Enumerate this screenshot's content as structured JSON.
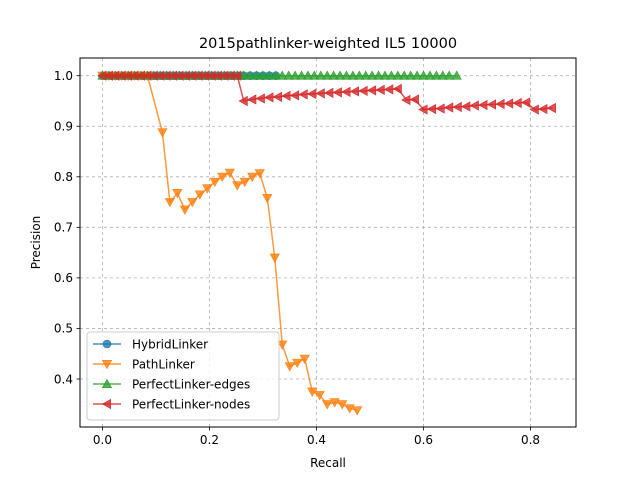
{
  "chart_data": {
    "type": "line",
    "title": "2015pathlinker-weighted IL5 10000",
    "xlabel": "Recall",
    "ylabel": "Precision",
    "xlim": [
      -0.042,
      0.885
    ],
    "ylim": [
      0.305,
      1.035
    ],
    "xticks": [
      0.0,
      0.2,
      0.4,
      0.6,
      0.8
    ],
    "xtick_labels": [
      "0.0",
      "0.2",
      "0.4",
      "0.6",
      "0.8"
    ],
    "yticks": [
      0.4,
      0.5,
      0.6,
      0.7,
      0.8,
      0.9,
      1.0
    ],
    "ytick_labels": [
      "0.4",
      "0.5",
      "0.6",
      "0.7",
      "0.8",
      "0.9",
      "1.0"
    ],
    "grid": true,
    "legend_position": "lower-left",
    "series": [
      {
        "name": "HybridLinker",
        "color": "#1f77b4",
        "marker": "circle",
        "x": [
          0.0,
          0.012,
          0.024,
          0.036,
          0.048,
          0.06,
          0.072,
          0.084,
          0.096,
          0.108,
          0.12,
          0.132,
          0.144,
          0.156,
          0.168,
          0.18,
          0.192,
          0.204,
          0.216,
          0.228,
          0.24,
          0.252,
          0.264,
          0.276,
          0.288,
          0.3,
          0.312,
          0.324
        ],
        "y": [
          1.0,
          1.0,
          1.0,
          1.0,
          1.0,
          1.0,
          1.0,
          1.0,
          1.0,
          1.0,
          1.0,
          1.0,
          1.0,
          1.0,
          1.0,
          1.0,
          1.0,
          1.0,
          1.0,
          1.0,
          1.0,
          1.0,
          1.0,
          1.0,
          1.0,
          1.0,
          1.0,
          1.0
        ]
      },
      {
        "name": "PathLinker",
        "color": "#ff7f0e",
        "marker": "triangle-down",
        "x": [
          0.0,
          0.012,
          0.024,
          0.036,
          0.048,
          0.06,
          0.072,
          0.084,
          0.112,
          0.126,
          0.14,
          0.154,
          0.168,
          0.182,
          0.196,
          0.21,
          0.224,
          0.238,
          0.252,
          0.266,
          0.28,
          0.294,
          0.308,
          0.322,
          0.336,
          0.35,
          0.364,
          0.378,
          0.392,
          0.406,
          0.42,
          0.434,
          0.448,
          0.462,
          0.476
        ],
        "y": [
          1.0,
          1.0,
          1.0,
          1.0,
          1.0,
          1.0,
          1.0,
          1.0,
          0.888,
          0.75,
          0.768,
          0.735,
          0.75,
          0.765,
          0.777,
          0.79,
          0.8,
          0.808,
          0.783,
          0.79,
          0.8,
          0.807,
          0.758,
          0.64,
          0.468,
          0.425,
          0.432,
          0.44,
          0.375,
          0.368,
          0.35,
          0.354,
          0.35,
          0.342,
          0.338
        ]
      },
      {
        "name": "PerfectLinker-edges",
        "color": "#2ca02c",
        "marker": "triangle-up",
        "x": [
          0.0,
          0.012,
          0.024,
          0.036,
          0.048,
          0.06,
          0.072,
          0.084,
          0.096,
          0.108,
          0.12,
          0.132,
          0.144,
          0.156,
          0.168,
          0.18,
          0.192,
          0.204,
          0.216,
          0.228,
          0.24,
          0.252,
          0.264,
          0.276,
          0.288,
          0.3,
          0.312,
          0.324,
          0.336,
          0.348,
          0.36,
          0.372,
          0.384,
          0.396,
          0.408,
          0.42,
          0.432,
          0.444,
          0.456,
          0.468,
          0.48,
          0.492,
          0.504,
          0.516,
          0.528,
          0.54,
          0.552,
          0.564,
          0.576,
          0.588,
          0.6,
          0.612,
          0.624,
          0.636,
          0.648,
          0.662
        ],
        "y": [
          1.0,
          1.0,
          1.0,
          1.0,
          1.0,
          1.0,
          1.0,
          1.0,
          1.0,
          1.0,
          1.0,
          1.0,
          1.0,
          1.0,
          1.0,
          1.0,
          1.0,
          1.0,
          1.0,
          1.0,
          1.0,
          1.0,
          1.0,
          1.0,
          1.0,
          1.0,
          1.0,
          1.0,
          1.0,
          1.0,
          1.0,
          1.0,
          1.0,
          1.0,
          1.0,
          1.0,
          1.0,
          1.0,
          1.0,
          1.0,
          1.0,
          1.0,
          1.0,
          1.0,
          1.0,
          1.0,
          1.0,
          1.0,
          1.0,
          1.0,
          1.0,
          1.0,
          1.0,
          1.0,
          1.0,
          1.0
        ]
      },
      {
        "name": "PerfectLinker-nodes",
        "color": "#d62728",
        "marker": "triangle-left",
        "x": [
          0.0,
          0.012,
          0.024,
          0.036,
          0.048,
          0.06,
          0.072,
          0.084,
          0.096,
          0.108,
          0.12,
          0.132,
          0.144,
          0.156,
          0.168,
          0.18,
          0.192,
          0.204,
          0.216,
          0.228,
          0.24,
          0.252,
          0.264,
          0.28,
          0.296,
          0.312,
          0.328,
          0.344,
          0.36,
          0.376,
          0.392,
          0.408,
          0.424,
          0.44,
          0.456,
          0.472,
          0.488,
          0.504,
          0.52,
          0.536,
          0.552,
          0.568,
          0.584,
          0.6,
          0.616,
          0.632,
          0.648,
          0.664,
          0.68,
          0.696,
          0.712,
          0.728,
          0.744,
          0.76,
          0.776,
          0.792,
          0.808,
          0.824,
          0.84
        ],
        "y": [
          1.0,
          1.0,
          1.0,
          1.0,
          1.0,
          1.0,
          1.0,
          1.0,
          1.0,
          1.0,
          1.0,
          1.0,
          1.0,
          1.0,
          1.0,
          1.0,
          1.0,
          1.0,
          1.0,
          1.0,
          1.0,
          1.0,
          0.95,
          0.953,
          0.955,
          0.957,
          0.958,
          0.96,
          0.961,
          0.963,
          0.964,
          0.965,
          0.966,
          0.967,
          0.968,
          0.969,
          0.97,
          0.971,
          0.972,
          0.973,
          0.974,
          0.952,
          0.953,
          0.933,
          0.934,
          0.935,
          0.937,
          0.938,
          0.939,
          0.941,
          0.942,
          0.943,
          0.944,
          0.945,
          0.946,
          0.947,
          0.933,
          0.934,
          0.936
        ]
      }
    ]
  }
}
